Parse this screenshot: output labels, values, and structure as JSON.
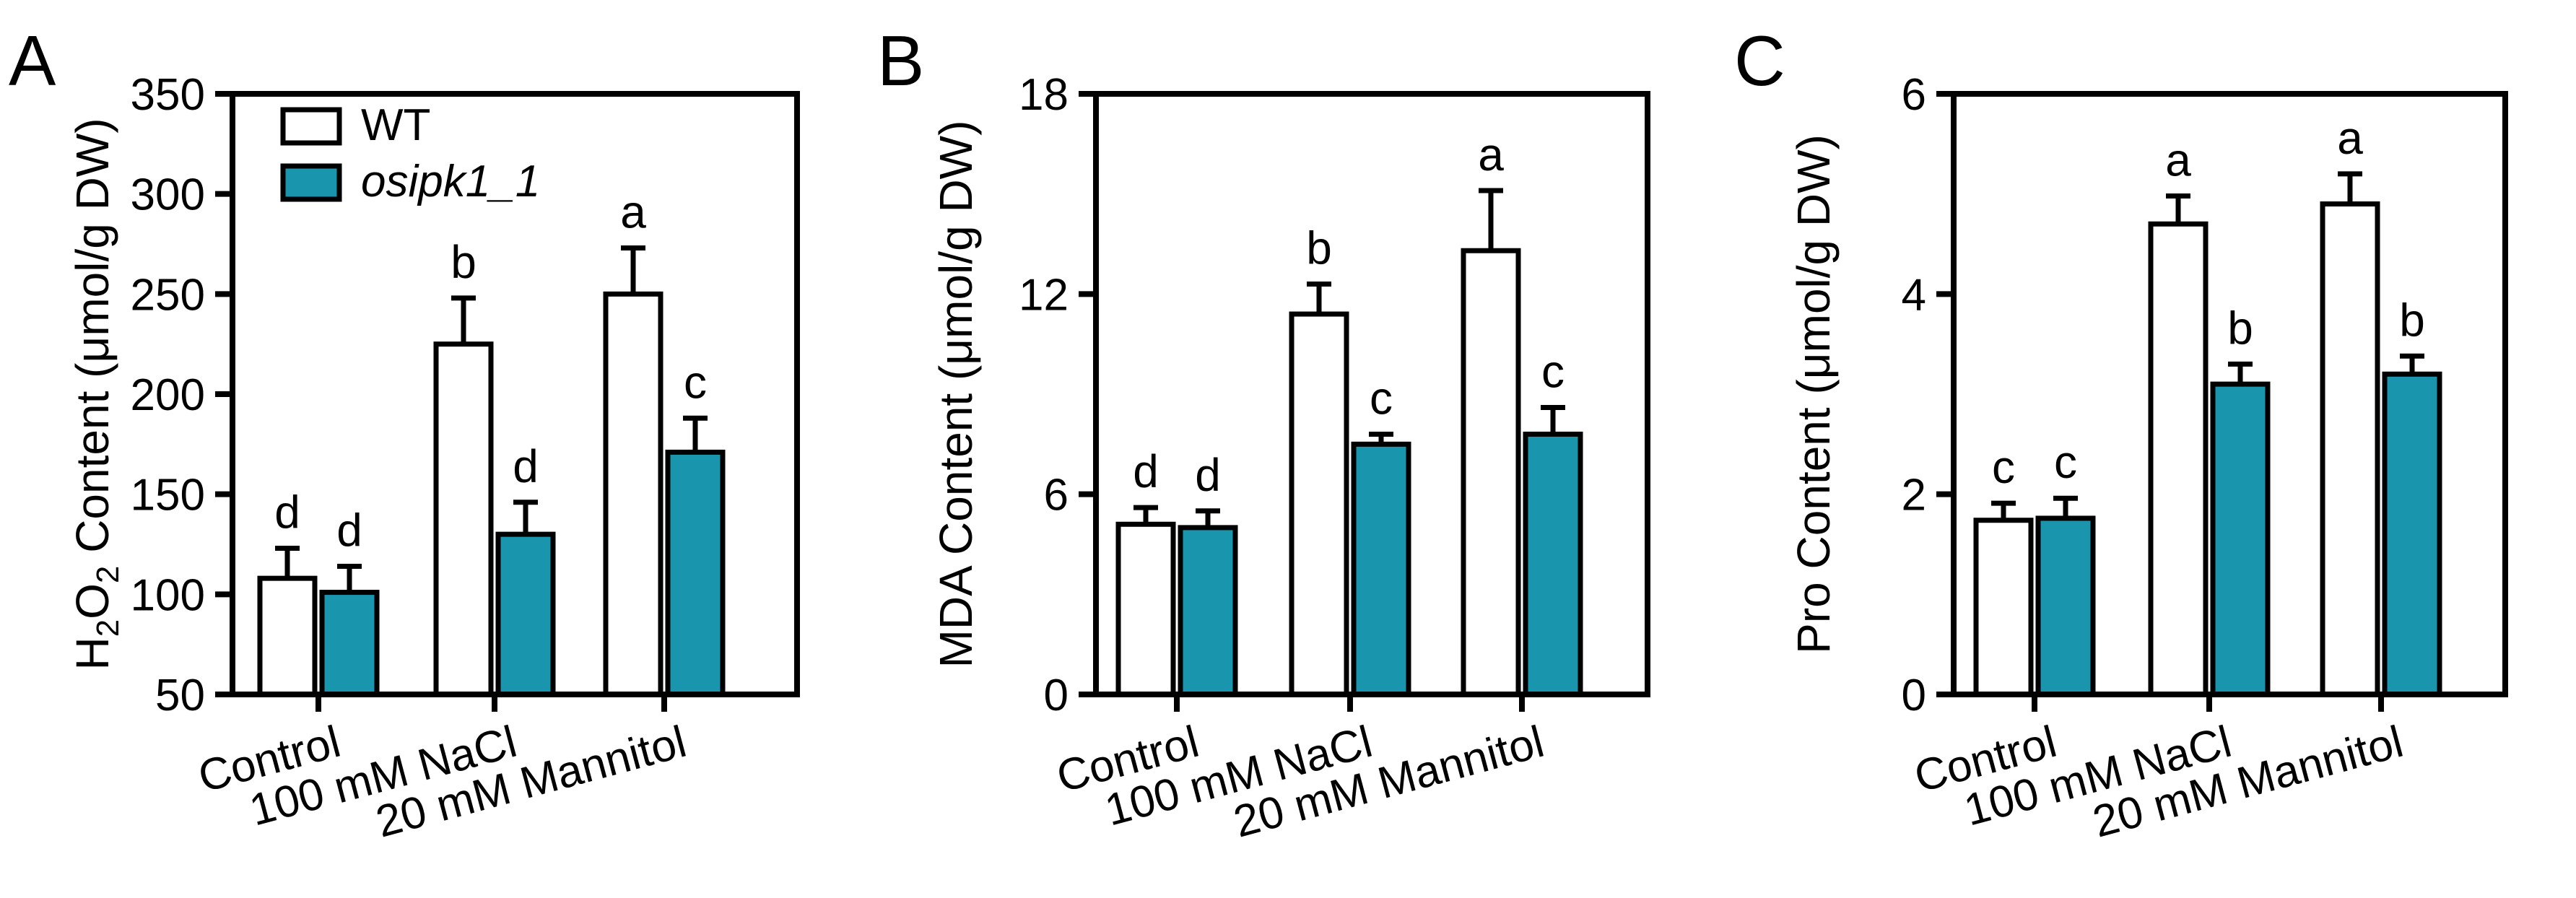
{
  "figure": {
    "colors": {
      "wt": "#ffffff",
      "mutant": "#1a95ae",
      "axis": "#000000"
    },
    "legend": {
      "entries": [
        "WT",
        "osipk1_1"
      ]
    }
  },
  "chart_data": [
    {
      "panel_label": "A",
      "type": "bar",
      "categories": [
        "Control",
        "100 mM NaCl",
        "20 mM Mannitol"
      ],
      "series": [
        {
          "name": "WT",
          "values": [
            108,
            225,
            250
          ],
          "errors": [
            15,
            23,
            23
          ],
          "letters": [
            "d",
            "b",
            "a"
          ]
        },
        {
          "name": "osipk1_1",
          "values": [
            101,
            130,
            171
          ],
          "errors": [
            13,
            16,
            17
          ],
          "letters": [
            "d",
            "d",
            "c"
          ]
        }
      ],
      "ylabel": {
        "prefix": "H",
        "sub1": "2",
        "mid": "O",
        "sub2": "2",
        "suffix": " Content (μmol/g DW)"
      },
      "ylim": [
        50,
        350
      ],
      "yticks": [
        50,
        100,
        150,
        200,
        250,
        300,
        350
      ]
    },
    {
      "panel_label": "B",
      "type": "bar",
      "categories": [
        "Control",
        "100 mM NaCl",
        "20 mM Mannitol"
      ],
      "series": [
        {
          "name": "WT",
          "values": [
            5.1,
            11.4,
            13.3
          ],
          "errors": [
            0.5,
            0.9,
            1.8
          ],
          "letters": [
            "d",
            "b",
            "a"
          ]
        },
        {
          "name": "osipk1_1",
          "values": [
            5.0,
            7.5,
            7.8
          ],
          "errors": [
            0.5,
            0.3,
            0.8
          ],
          "letters": [
            "d",
            "c",
            "c"
          ]
        }
      ],
      "ylabel": {
        "text": "MDA Content (μmol/g DW)"
      },
      "ylim": [
        0,
        18
      ],
      "yticks": [
        0,
        6,
        12,
        18
      ]
    },
    {
      "panel_label": "C",
      "type": "bar",
      "categories": [
        "Control",
        "100 mM NaCl",
        "20 mM Mannitol"
      ],
      "series": [
        {
          "name": "WT",
          "values": [
            1.74,
            4.7,
            4.9
          ],
          "errors": [
            0.17,
            0.28,
            0.3
          ],
          "letters": [
            "c",
            "a",
            "a"
          ]
        },
        {
          "name": "osipk1_1",
          "values": [
            1.76,
            3.1,
            3.2
          ],
          "errors": [
            0.2,
            0.2,
            0.18
          ],
          "letters": [
            "c",
            "b",
            "b"
          ]
        }
      ],
      "ylabel": {
        "text": "Pro Content (μmol/g DW)"
      },
      "ylim": [
        0,
        6
      ],
      "yticks": [
        0,
        2,
        4,
        6
      ]
    }
  ]
}
